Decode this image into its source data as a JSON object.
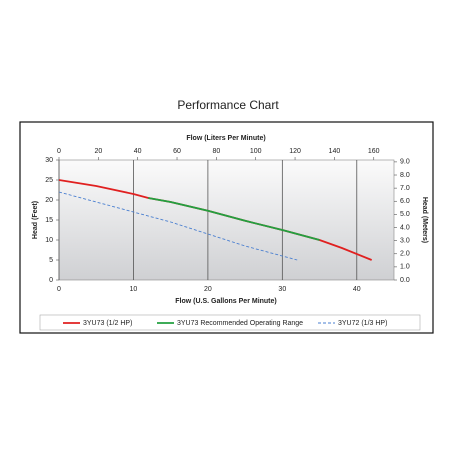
{
  "chart_data": {
    "type": "line",
    "title": "Performance Chart",
    "xlabel": "Flow (U.S. Gallons Per Minute)",
    "x2label": "Flow (Liters Per Minute)",
    "ylabel": "Head (Feet)",
    "y2label": "Head (Meters)",
    "xlim": [
      0,
      45
    ],
    "xticks": [
      0,
      10,
      20,
      30,
      40
    ],
    "x2lim": [
      0,
      170.3
    ],
    "x2ticks": [
      0,
      20,
      40,
      60,
      80,
      100,
      120,
      140,
      160
    ],
    "ylim": [
      0,
      30
    ],
    "yticks": [
      0,
      5,
      10,
      15,
      20,
      25,
      30
    ],
    "y2lim": [
      0,
      9.144
    ],
    "y2ticks": [
      {
        "value": 0,
        "label": "0.0"
      },
      {
        "value": 1,
        "label": "1.0"
      },
      {
        "value": 2,
        "label": "2.0"
      },
      {
        "value": 3,
        "label": "3.0"
      },
      {
        "value": 4,
        "label": "4.0"
      },
      {
        "value": 5,
        "label": "5.0"
      },
      {
        "value": 6,
        "label": "6.0"
      },
      {
        "value": 7,
        "label": "7.0"
      },
      {
        "value": 8,
        "label": "8.0"
      },
      {
        "value": 9,
        "label": "9.0"
      }
    ],
    "grid": true,
    "series": [
      {
        "name": "3YU73 (1/2 HP)",
        "color": "#e02020",
        "dash": false,
        "x": [
          0,
          5,
          10,
          12,
          15,
          20,
          25,
          30,
          35,
          38,
          42
        ],
        "values": [
          25,
          23.5,
          21.5,
          20.5,
          19.5,
          17.3,
          14.8,
          12.5,
          10,
          8,
          5
        ]
      },
      {
        "name": "3YU73 Recommended Operating Range",
        "color": "#22a040",
        "dash": false,
        "x": [
          12,
          15,
          20,
          25,
          30,
          35
        ],
        "values": [
          20.5,
          19.5,
          17.3,
          14.8,
          12.5,
          10
        ]
      },
      {
        "name": "3YU72 (1/3 HP)",
        "color": "#4a7fd0",
        "dash": true,
        "x": [
          0,
          5,
          10,
          15,
          20,
          25,
          30,
          32
        ],
        "values": [
          22,
          19.5,
          17,
          14.5,
          11.5,
          8.5,
          6,
          5
        ]
      }
    ]
  }
}
